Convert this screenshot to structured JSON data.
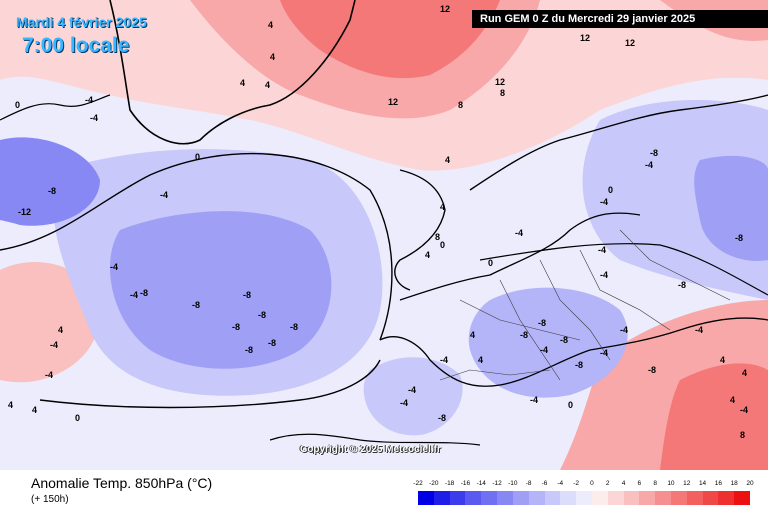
{
  "header": {
    "date": "Mardi 4 février 2025",
    "time": "7:00 locale",
    "run": "Run GEM 0 Z du Mercredi 29 janvier 2025"
  },
  "footer": {
    "title": "Anomalie Temp. 850hPa (°C)",
    "subtitle": "(+ 150h)",
    "copyright": "Copyright © 2025 Meteociel.fr"
  },
  "legend": {
    "labels": [
      "-22",
      "-20",
      "-18",
      "-16",
      "-14",
      "-12",
      "-10",
      "-8",
      "-6",
      "-4",
      "-2",
      "0",
      "2",
      "4",
      "6",
      "8",
      "10",
      "12",
      "14",
      "16",
      "18",
      "20"
    ],
    "colors": [
      "#0000e6",
      "#1e1ee8",
      "#3c3cec",
      "#5a5af0",
      "#7070f2",
      "#8888f4",
      "#9f9ff6",
      "#b4b4f8",
      "#c8c8fa",
      "#dcdcfc",
      "#ececfd",
      "#fdecec",
      "#fcd6d6",
      "#fac0c0",
      "#f8a8a8",
      "#f69090",
      "#f47878",
      "#f26060",
      "#f04848",
      "#ee3030",
      "#ec1010"
    ]
  },
  "map_values": [
    "12",
    "12",
    "12",
    "12",
    "8",
    "12",
    "8",
    "4",
    "4",
    "4",
    "4",
    "4",
    "0",
    "0",
    "-4",
    "-4",
    "-4",
    "-4",
    "-8",
    "-12",
    "-4",
    "-8",
    "-8",
    "-8",
    "-8",
    "-8",
    "-8",
    "-8",
    "-8",
    "-4",
    "-4",
    "4",
    "4",
    "4",
    "0",
    "-4",
    "-4",
    "-4",
    "-8",
    "-8",
    "-8",
    "-8",
    "-8",
    "-8",
    "-4",
    "-4",
    "-4",
    "-8",
    "-4",
    "-4",
    "-8",
    "-8",
    "-4",
    "-4",
    "4",
    "4",
    "4",
    "8",
    "0",
    "-4",
    "0",
    "-4",
    "-4",
    "-4",
    "0",
    "4",
    "4",
    "8",
    "0",
    "4",
    "4"
  ],
  "colors": {
    "accent": "#38b6ff",
    "warm": "#f26060",
    "cold": "#7070f2"
  }
}
